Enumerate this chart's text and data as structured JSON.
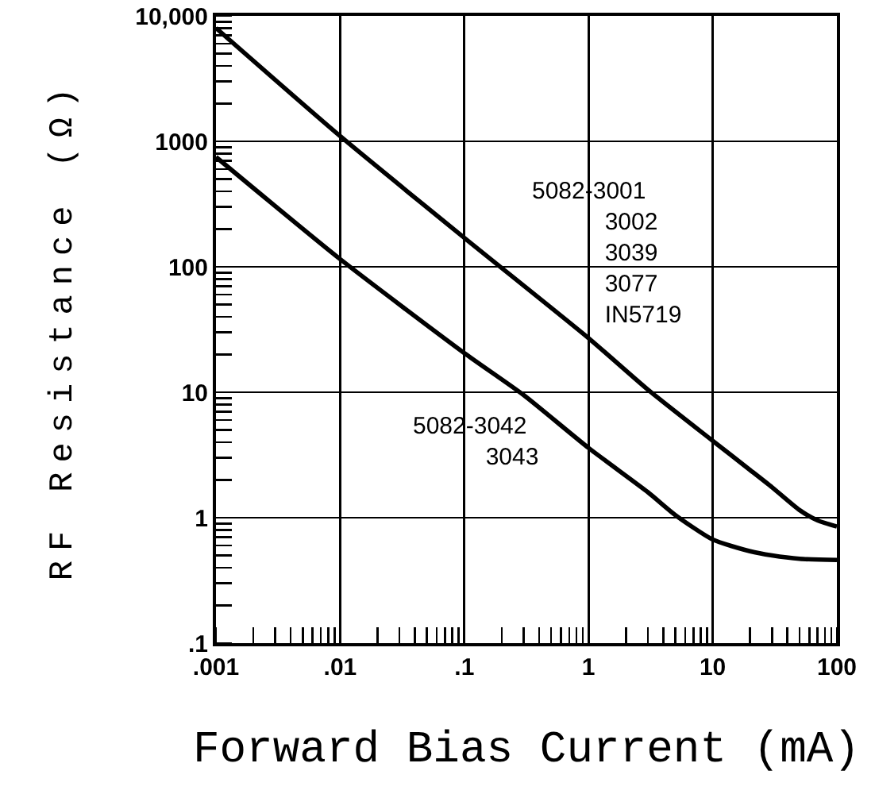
{
  "chart_data": {
    "type": "line",
    "xlabel": "Forward Bias Current (mA)",
    "ylabel": "RF Resistance (Ω)",
    "log": "xy",
    "xlim": [
      0.001,
      100
    ],
    "xticks": [
      {
        "value": 0.001,
        "label": ".001"
      },
      {
        "value": 0.01,
        "label": ".01"
      },
      {
        "value": 0.1,
        "label": ".1"
      },
      1,
      10,
      100
    ],
    "ylim": [
      0.1,
      10000
    ],
    "yticks": [
      {
        "value": 0.1,
        "label": ".1"
      },
      1,
      10,
      100,
      1000,
      {
        "value": 10000,
        "label": "10,000"
      }
    ],
    "grid": true,
    "legend": false,
    "line_style": "solid",
    "series": [
      {
        "name": "5082-3001\n3002\n3039\n3077\nIN5719",
        "color": "#000000",
        "x": [
          0.001,
          0.01,
          0.1,
          1,
          3,
          10,
          20,
          30,
          50,
          70,
          100
        ],
        "values": [
          8000,
          1100,
          170,
          27,
          10.5,
          4.1,
          2.4,
          1.75,
          1.15,
          0.95,
          0.85
        ]
      },
      {
        "name": "5082-3042\n3043",
        "color": "#000000",
        "x": [
          0.001,
          0.01,
          0.1,
          0.3,
          1,
          3,
          5,
          10,
          20,
          30,
          50,
          100
        ],
        "values": [
          750,
          115,
          20.5,
          9.5,
          3.6,
          1.6,
          1.05,
          0.67,
          0.54,
          0.5,
          0.47,
          0.46
        ]
      }
    ]
  }
}
